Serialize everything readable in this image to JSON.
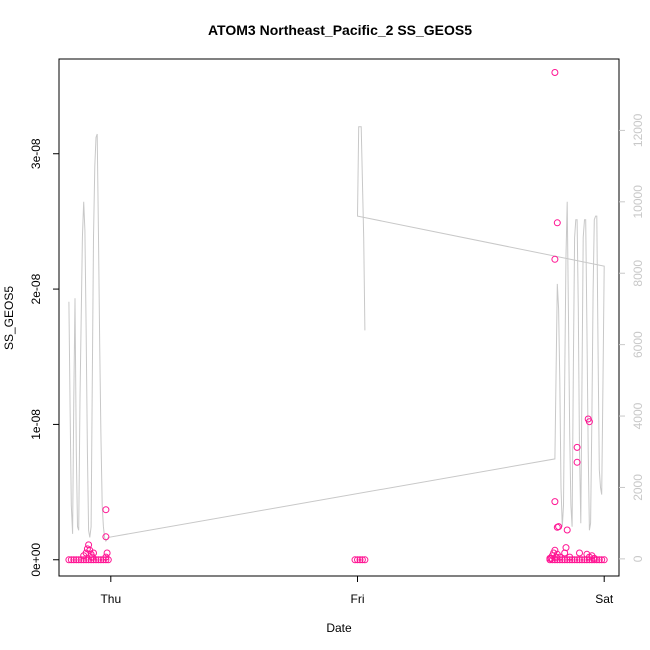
{
  "chart_data": {
    "type": "scatter",
    "title": "ATOM3 Northeast_Pacific_2 SS_GEOS5",
    "xlabel": "Date",
    "ylabel": "SS_GEOS5",
    "x_ticks": [
      "Thu",
      "Fri",
      "Sat"
    ],
    "x_tick_values": [
      0,
      1,
      2
    ],
    "xlim": [
      -0.21,
      2.06
    ],
    "y_ticks": [
      "0e+00",
      "1e-08",
      "2e-08",
      "3e-08"
    ],
    "y_tick_values": [
      0,
      1e-08,
      2e-08,
      3e-08
    ],
    "ylim": [
      -1.2e-09,
      3.7e-08
    ],
    "y2_ticks": [
      "0",
      "2000",
      "4000",
      "6000",
      "8000",
      "10000",
      "12000"
    ],
    "y2_tick_values": [
      0,
      2000,
      4000,
      6000,
      8000,
      10000,
      12000
    ],
    "y2lim": [
      -480,
      14000
    ],
    "grid": false,
    "series": [
      {
        "kind": "points",
        "color": "#ff1493",
        "points": [
          [
            -0.17,
            0
          ],
          [
            -0.16,
            0
          ],
          [
            -0.15,
            0
          ],
          [
            -0.14,
            0
          ],
          [
            -0.13,
            0
          ],
          [
            -0.12,
            0
          ],
          [
            -0.11,
            0
          ],
          [
            -0.1,
            0
          ],
          [
            -0.09,
            0
          ],
          [
            -0.08,
            0
          ],
          [
            -0.07,
            0
          ],
          [
            -0.06,
            0
          ],
          [
            -0.05,
            0
          ],
          [
            -0.04,
            0
          ],
          [
            -0.03,
            0
          ],
          [
            -0.02,
            0
          ],
          [
            -0.01,
            0
          ],
          [
            -0.11,
            3e-10
          ],
          [
            -0.1,
            5e-10
          ],
          [
            -0.095,
            8e-10
          ],
          [
            -0.09,
            1.1e-09
          ],
          [
            -0.085,
            7e-10
          ],
          [
            -0.08,
            4e-10
          ],
          [
            -0.075,
            2e-10
          ],
          [
            -0.07,
            5e-10
          ],
          [
            -0.02,
            2e-10
          ],
          [
            -0.015,
            5e-10
          ],
          [
            -0.02,
            1.7e-09
          ],
          [
            -0.02,
            3.7e-09
          ],
          [
            0.99,
            0
          ],
          [
            1.0,
            0
          ],
          [
            1.01,
            0
          ],
          [
            1.02,
            0
          ],
          [
            1.03,
            0
          ],
          [
            1.78,
            0
          ],
          [
            1.79,
            0
          ],
          [
            1.8,
            0
          ],
          [
            1.81,
            0
          ],
          [
            1.82,
            0
          ],
          [
            1.83,
            0
          ],
          [
            1.84,
            0
          ],
          [
            1.85,
            0
          ],
          [
            1.86,
            0
          ],
          [
            1.87,
            0
          ],
          [
            1.88,
            0
          ],
          [
            1.89,
            0
          ],
          [
            1.9,
            0
          ],
          [
            1.91,
            0
          ],
          [
            1.92,
            0
          ],
          [
            1.93,
            0
          ],
          [
            1.94,
            0
          ],
          [
            1.95,
            0
          ],
          [
            1.96,
            0
          ],
          [
            1.97,
            0
          ],
          [
            1.98,
            0
          ],
          [
            1.99,
            0
          ],
          [
            2.0,
            0
          ],
          [
            1.78,
            1e-10
          ],
          [
            1.785,
            1e-10
          ],
          [
            1.79,
            3e-10
          ],
          [
            1.795,
            5e-10
          ],
          [
            1.8,
            7e-10
          ],
          [
            1.805,
            2e-10
          ],
          [
            1.81,
            4e-10
          ],
          [
            1.82,
            2e-10
          ],
          [
            1.84,
            5e-10
          ],
          [
            1.845,
            9e-10
          ],
          [
            1.86,
            2e-10
          ],
          [
            1.9,
            5e-10
          ],
          [
            1.93,
            4e-10
          ],
          [
            1.94,
            2e-10
          ],
          [
            1.95,
            3e-10
          ],
          [
            1.96,
            1e-10
          ],
          [
            1.8,
            4.3e-09
          ],
          [
            1.81,
            2.4e-09
          ],
          [
            1.815,
            2.45e-09
          ],
          [
            1.85,
            2.2e-09
          ],
          [
            1.89,
            8.3e-09
          ],
          [
            1.89,
            7.2e-09
          ],
          [
            1.935,
            1.04e-08
          ],
          [
            1.94,
            1.02e-08
          ],
          [
            1.8,
            2.22e-08
          ],
          [
            1.81,
            2.49e-08
          ],
          [
            1.8,
            3.6e-08
          ]
        ]
      },
      {
        "kind": "line",
        "axis": "right",
        "color": "#c8c8c8",
        "points": [
          [
            -0.17,
            7200
          ],
          [
            -0.165,
            4200
          ],
          [
            -0.16,
            1500
          ],
          [
            -0.155,
            700
          ],
          [
            -0.15,
            4500
          ],
          [
            -0.145,
            7300
          ],
          [
            -0.14,
            3000
          ],
          [
            -0.135,
            900
          ],
          [
            -0.13,
            800
          ],
          [
            -0.125,
            4500
          ],
          [
            -0.115,
            9000
          ],
          [
            -0.11,
            10000
          ],
          [
            -0.105,
            9200
          ],
          [
            -0.1,
            6500
          ],
          [
            -0.095,
            3000
          ],
          [
            -0.09,
            800
          ],
          [
            -0.085,
            600
          ],
          [
            -0.08,
            900
          ],
          [
            -0.075,
            5000
          ],
          [
            -0.07,
            9000
          ],
          [
            -0.065,
            11000
          ],
          [
            -0.06,
            11800
          ],
          [
            -0.055,
            11900
          ],
          [
            -0.05,
            9000
          ],
          [
            -0.045,
            6000
          ],
          [
            -0.04,
            3500
          ],
          [
            -0.035,
            1500
          ],
          [
            -0.03,
            900
          ],
          [
            -0.025,
            600
          ],
          [
            -0.02,
            500
          ],
          [
            -0.01,
            600
          ],
          [
            1.8,
            2800
          ],
          [
            1.81,
            7700
          ],
          [
            1.815,
            7000
          ],
          [
            1.82,
            5000
          ],
          [
            1.825,
            2000
          ],
          [
            1.83,
            900
          ],
          [
            1.835,
            1500
          ],
          [
            1.84,
            5000
          ],
          [
            1.845,
            8500
          ],
          [
            1.85,
            10000
          ],
          [
            1.855,
            7000
          ],
          [
            1.86,
            3500
          ],
          [
            1.865,
            1500
          ],
          [
            1.87,
            900
          ],
          [
            1.875,
            5500
          ],
          [
            1.88,
            9000
          ],
          [
            1.885,
            9500
          ],
          [
            1.89,
            9500
          ],
          [
            1.895,
            7000
          ],
          [
            1.9,
            3000
          ],
          [
            1.905,
            1000
          ],
          [
            1.91,
            5000
          ],
          [
            1.915,
            9000
          ],
          [
            1.92,
            9500
          ],
          [
            1.925,
            9500
          ],
          [
            1.93,
            6500
          ],
          [
            1.935,
            3000
          ],
          [
            1.94,
            800
          ],
          [
            1.945,
            1000
          ],
          [
            1.95,
            4000
          ],
          [
            1.955,
            7500
          ],
          [
            1.96,
            9500
          ],
          [
            1.965,
            9600
          ],
          [
            1.97,
            9600
          ],
          [
            1.975,
            6000
          ],
          [
            1.98,
            2500
          ],
          [
            1.985,
            2000
          ],
          [
            1.99,
            1800
          ],
          [
            1.995,
            5000
          ],
          [
            2.0,
            8200
          ],
          [
            1.0,
            9600
          ],
          [
            1.005,
            12100
          ],
          [
            1.015,
            12100
          ],
          [
            1.025,
            9000
          ],
          [
            1.03,
            6400
          ]
        ]
      }
    ]
  }
}
